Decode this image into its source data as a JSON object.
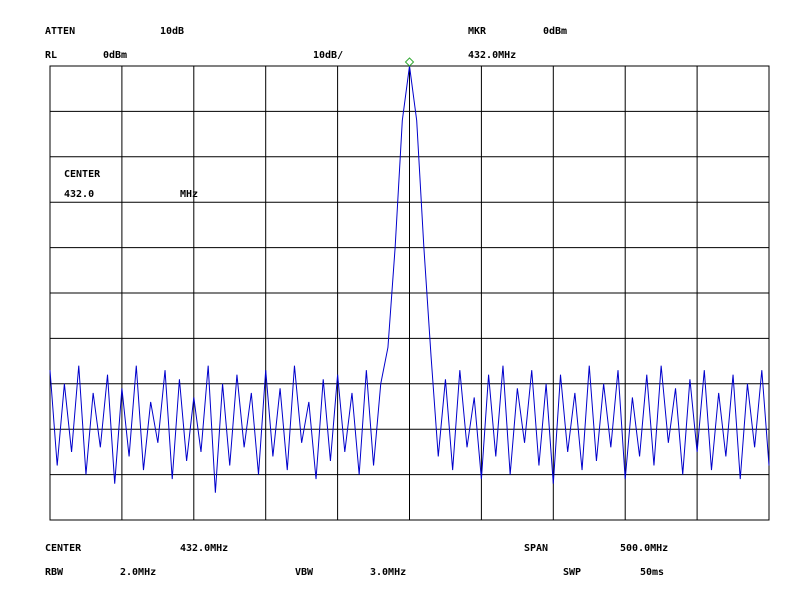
{
  "header": {
    "atten_label": "ATTEN",
    "atten_value": "10dB",
    "mkr_label": "MKR",
    "mkr_level": "0dBm",
    "rl_label": "RL",
    "rl_value": "0dBm",
    "scale": "10dB/",
    "mkr_freq": "432.0MHz"
  },
  "overlay": {
    "center_label": "CENTER",
    "center_value": "432.0",
    "center_unit": "MHz"
  },
  "footer": {
    "center_label": "CENTER",
    "center_value": "432.0MHz",
    "span_label": "SPAN",
    "span_value": "500.0MHz",
    "rbw_label": "RBW",
    "rbw_value": "2.0MHz",
    "vbw_label": "VBW",
    "vbw_value": "3.0MHz",
    "swp_label": "SWP",
    "swp_value": "50ms"
  },
  "chart_data": {
    "type": "line",
    "xlim": [
      182,
      682
    ],
    "ylim": [
      -100,
      0
    ],
    "x": [
      182,
      187,
      192,
      197,
      202,
      207,
      212,
      217,
      222,
      227,
      232,
      237,
      242,
      247,
      252,
      257,
      262,
      267,
      272,
      277,
      282,
      287,
      292,
      297,
      302,
      307,
      312,
      317,
      322,
      327,
      332,
      337,
      342,
      347,
      352,
      357,
      362,
      367,
      372,
      377,
      382,
      387,
      392,
      397,
      402,
      407,
      412,
      417,
      422,
      427,
      432,
      437,
      442,
      447,
      452,
      457,
      462,
      467,
      472,
      477,
      482,
      487,
      492,
      497,
      502,
      507,
      512,
      517,
      522,
      527,
      532,
      537,
      542,
      547,
      552,
      557,
      562,
      567,
      572,
      577,
      582,
      587,
      592,
      597,
      602,
      607,
      612,
      617,
      622,
      627,
      632,
      637,
      642,
      647,
      652,
      657,
      662,
      667,
      672,
      677,
      682
    ],
    "series": [
      {
        "color": "#0000cc",
        "values": [
          -67,
          -88,
          -70,
          -85,
          -66,
          -90,
          -72,
          -84,
          -68,
          -92,
          -71,
          -86,
          -66,
          -89,
          -74,
          -83,
          -67,
          -91,
          -69,
          -87,
          -73,
          -85,
          -66,
          -94,
          -70,
          -88,
          -68,
          -84,
          -72,
          -90,
          -67,
          -86,
          -71,
          -89,
          -66,
          -83,
          -74,
          -91,
          -69,
          -87,
          -68,
          -85,
          -72,
          -90,
          -67,
          -88,
          -70,
          -62,
          -40,
          -12,
          0,
          -12,
          -40,
          -64,
          -86,
          -69,
          -89,
          -67,
          -84,
          -73,
          -91,
          -68,
          -86,
          -66,
          -90,
          -71,
          -83,
          -67,
          -88,
          -70,
          -92,
          -68,
          -85,
          -72,
          -89,
          -66,
          -87,
          -70,
          -84,
          -67,
          -91,
          -73,
          -86,
          -68,
          -88,
          -66,
          -83,
          -71,
          -90,
          -69,
          -85,
          -67,
          -89,
          -72,
          -86,
          -68,
          -91,
          -70,
          -84,
          -67,
          -88
        ]
      }
    ],
    "marker": {
      "x": 432,
      "y": 0,
      "color": "#33aa33"
    }
  }
}
